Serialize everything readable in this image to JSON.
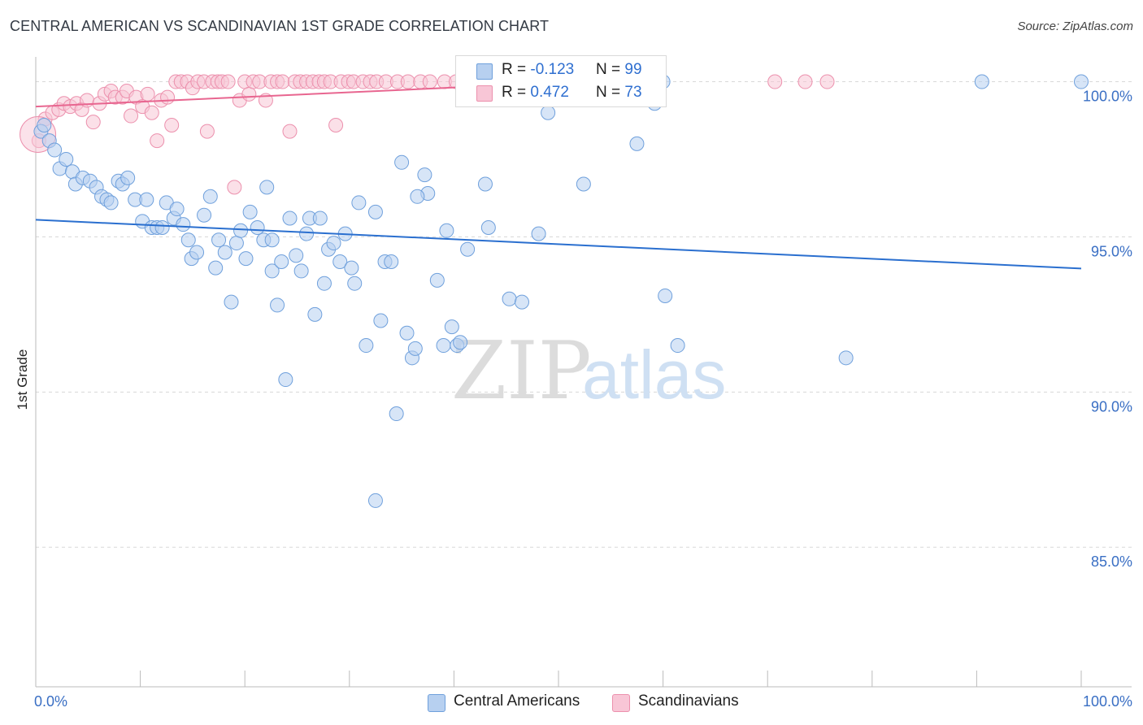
{
  "title": "CENTRAL AMERICAN VS SCANDINAVIAN 1ST GRADE CORRELATION CHART",
  "source": "Source: ZipAtlas.com",
  "watermark": {
    "zip": "ZIP",
    "atlas": "atlas"
  },
  "legend": {
    "series1": {
      "r_label": "R = ",
      "r_value": "-0.123",
      "n_label": "N = ",
      "n_value": "99"
    },
    "series2": {
      "r_label": "R = ",
      "r_value": "0.472",
      "n_label": "N = ",
      "n_value": "73"
    }
  },
  "colors": {
    "blue_fill": "#b7d0f0",
    "blue_stroke": "#6fa0dc",
    "blue_line": "#2a6fcf",
    "pink_fill": "#f8c6d6",
    "pink_stroke": "#ec90ad",
    "pink_line": "#e86690",
    "grid": "#d8d8d8",
    "axis_text": "#3a6fc4"
  },
  "chart_data": {
    "type": "scatter",
    "title": "CENTRAL AMERICAN VS SCANDINAVIAN 1ST GRADE CORRELATION CHART",
    "xlabel": "",
    "ylabel": "1st Grade",
    "xlim": [
      0,
      100
    ],
    "ylim": [
      80.5,
      100.8
    ],
    "x_tick_labels": [
      "0.0%",
      "100.0%"
    ],
    "y_ticks": [
      100,
      95,
      90,
      85
    ],
    "y_tick_labels": [
      "100.0%",
      "95.0%",
      "90.0%",
      "85.0%"
    ],
    "legend_labels": [
      "Central Americans",
      "Scandinavians"
    ],
    "series": [
      {
        "name": "Central Americans",
        "r": -0.123,
        "n": 99,
        "trend": {
          "x": [
            0,
            100
          ],
          "y": [
            95.55,
            93.98
          ]
        },
        "points": [
          [
            0.5,
            98.4
          ],
          [
            1.3,
            98.1
          ],
          [
            1.8,
            97.8
          ],
          [
            2.3,
            97.2
          ],
          [
            2.9,
            97.5
          ],
          [
            3.5,
            97.1
          ],
          [
            3.8,
            96.7
          ],
          [
            4.5,
            96.9
          ],
          [
            5.2,
            96.8
          ],
          [
            5.8,
            96.6
          ],
          [
            6.3,
            96.3
          ],
          [
            6.8,
            96.2
          ],
          [
            7.2,
            96.1
          ],
          [
            7.9,
            96.8
          ],
          [
            8.3,
            96.7
          ],
          [
            8.8,
            96.9
          ],
          [
            9.5,
            96.2
          ],
          [
            10.2,
            95.5
          ],
          [
            10.6,
            96.2
          ],
          [
            11.1,
            95.3
          ],
          [
            11.6,
            95.3
          ],
          [
            12.1,
            95.3
          ],
          [
            12.5,
            96.1
          ],
          [
            13.2,
            95.6
          ],
          [
            13.5,
            95.9
          ],
          [
            14.1,
            95.4
          ],
          [
            14.6,
            94.9
          ],
          [
            14.9,
            94.3
          ],
          [
            15.4,
            94.5
          ],
          [
            16.1,
            95.7
          ],
          [
            16.7,
            96.3
          ],
          [
            17.2,
            94.0
          ],
          [
            17.5,
            94.9
          ],
          [
            18.1,
            94.5
          ],
          [
            18.7,
            92.9
          ],
          [
            19.2,
            94.8
          ],
          [
            19.6,
            95.2
          ],
          [
            20.1,
            94.3
          ],
          [
            20.5,
            95.8
          ],
          [
            21.2,
            95.3
          ],
          [
            21.8,
            94.9
          ],
          [
            22.1,
            96.6
          ],
          [
            22.6,
            93.9
          ],
          [
            23.1,
            92.8
          ],
          [
            23.5,
            94.2
          ],
          [
            23.9,
            90.4
          ],
          [
            24.3,
            95.6
          ],
          [
            24.9,
            94.4
          ],
          [
            25.4,
            93.9
          ],
          [
            25.9,
            95.1
          ],
          [
            26.2,
            95.6
          ],
          [
            26.7,
            92.5
          ],
          [
            27.2,
            95.6
          ],
          [
            27.6,
            93.5
          ],
          [
            28.0,
            94.6
          ],
          [
            28.5,
            94.8
          ],
          [
            29.1,
            94.2
          ],
          [
            29.6,
            95.1
          ],
          [
            30.2,
            94.0
          ],
          [
            30.5,
            93.5
          ],
          [
            30.9,
            96.1
          ],
          [
            31.6,
            91.5
          ],
          [
            32.5,
            95.8
          ],
          [
            33.0,
            92.3
          ],
          [
            33.4,
            94.2
          ],
          [
            34.0,
            94.2
          ],
          [
            34.5,
            89.3
          ],
          [
            35.0,
            97.4
          ],
          [
            35.5,
            91.9
          ],
          [
            36.0,
            91.1
          ],
          [
            36.3,
            91.4
          ],
          [
            37.2,
            97.0
          ],
          [
            37.5,
            96.4
          ],
          [
            38.4,
            93.6
          ],
          [
            39.0,
            91.5
          ],
          [
            39.3,
            95.2
          ],
          [
            39.8,
            92.1
          ],
          [
            40.3,
            91.5
          ],
          [
            40.6,
            91.6
          ],
          [
            41.3,
            94.6
          ],
          [
            43.0,
            96.7
          ],
          [
            43.3,
            95.3
          ],
          [
            45.3,
            93.0
          ],
          [
            46.5,
            92.9
          ],
          [
            48.1,
            95.1
          ],
          [
            52.4,
            96.7
          ],
          [
            57.5,
            98.0
          ],
          [
            59.2,
            99.3
          ],
          [
            60.0,
            100.0
          ],
          [
            60.2,
            93.1
          ],
          [
            61.4,
            91.5
          ],
          [
            77.5,
            91.1
          ],
          [
            90.5,
            100.0
          ],
          [
            100.0,
            100.0
          ],
          [
            32.5,
            86.5
          ],
          [
            36.5,
            96.3
          ],
          [
            22.6,
            94.9
          ],
          [
            49.0,
            99.0
          ],
          [
            0.8,
            98.6
          ]
        ]
      },
      {
        "name": "Scandinavians",
        "r": 0.472,
        "n": 73,
        "trend": {
          "x": [
            0,
            40.5
          ],
          "y": [
            99.2,
            99.82
          ]
        },
        "points": [
          [
            0.3,
            98.1
          ],
          [
            0.9,
            98.8
          ],
          [
            1.6,
            99.0
          ],
          [
            2.2,
            99.1
          ],
          [
            2.7,
            99.3
          ],
          [
            3.3,
            99.2
          ],
          [
            3.9,
            99.3
          ],
          [
            4.4,
            99.1
          ],
          [
            4.9,
            99.4
          ],
          [
            5.5,
            98.7
          ],
          [
            6.1,
            99.3
          ],
          [
            6.6,
            99.6
          ],
          [
            7.2,
            99.7
          ],
          [
            7.6,
            99.5
          ],
          [
            8.3,
            99.5
          ],
          [
            8.7,
            99.7
          ],
          [
            9.1,
            98.9
          ],
          [
            9.6,
            99.5
          ],
          [
            10.2,
            99.2
          ],
          [
            10.7,
            99.6
          ],
          [
            11.1,
            99.0
          ],
          [
            11.6,
            98.1
          ],
          [
            12.0,
            99.4
          ],
          [
            12.6,
            99.5
          ],
          [
            13.0,
            98.6
          ],
          [
            13.4,
            100.0
          ],
          [
            13.9,
            100.0
          ],
          [
            14.5,
            100.0
          ],
          [
            15.0,
            99.8
          ],
          [
            15.5,
            100.0
          ],
          [
            16.1,
            100.0
          ],
          [
            16.4,
            98.4
          ],
          [
            16.9,
            100.0
          ],
          [
            17.4,
            100.0
          ],
          [
            17.8,
            100.0
          ],
          [
            18.4,
            100.0
          ],
          [
            19.0,
            96.6
          ],
          [
            19.5,
            99.4
          ],
          [
            20.0,
            100.0
          ],
          [
            20.4,
            99.6
          ],
          [
            20.8,
            100.0
          ],
          [
            21.4,
            100.0
          ],
          [
            22.0,
            99.4
          ],
          [
            22.5,
            100.0
          ],
          [
            23.1,
            100.0
          ],
          [
            23.6,
            100.0
          ],
          [
            24.3,
            98.4
          ],
          [
            24.8,
            100.0
          ],
          [
            25.3,
            100.0
          ],
          [
            25.9,
            100.0
          ],
          [
            26.5,
            100.0
          ],
          [
            27.1,
            100.0
          ],
          [
            27.6,
            100.0
          ],
          [
            28.2,
            100.0
          ],
          [
            28.7,
            98.6
          ],
          [
            29.2,
            100.0
          ],
          [
            29.9,
            100.0
          ],
          [
            30.4,
            100.0
          ],
          [
            31.3,
            100.0
          ],
          [
            32.0,
            100.0
          ],
          [
            32.6,
            100.0
          ],
          [
            33.5,
            100.0
          ],
          [
            34.6,
            100.0
          ],
          [
            35.6,
            100.0
          ],
          [
            36.8,
            100.0
          ],
          [
            37.7,
            100.0
          ],
          [
            39.1,
            100.0
          ],
          [
            40.2,
            100.0
          ],
          [
            41.6,
            100.0
          ],
          [
            42.9,
            100.0
          ],
          [
            70.7,
            100.0
          ],
          [
            73.6,
            100.0
          ],
          [
            75.7,
            100.0
          ]
        ]
      }
    ]
  }
}
